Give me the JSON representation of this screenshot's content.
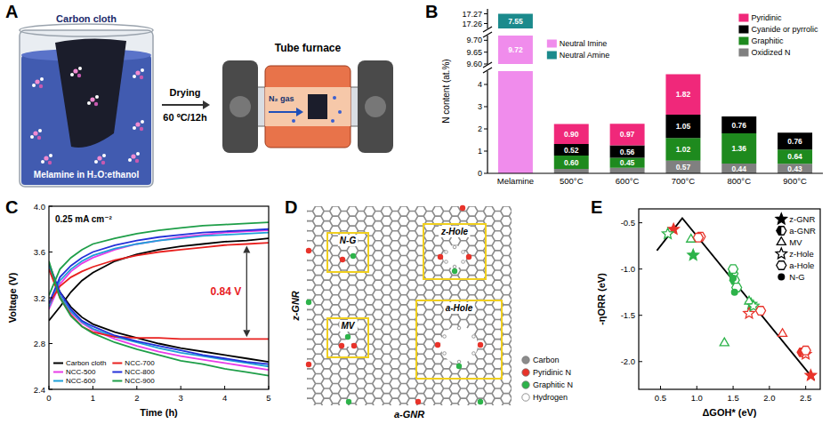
{
  "schematics": [
    {
      "panel": "A",
      "texts": {
        "carbon_cloth": "Carbon cloth",
        "solution": "Melamine in H₂O:ethanol",
        "step": "Drying",
        "step_condition": "60 ºC/12h",
        "furnace": "Tube furnace",
        "gas": "N₂ gas"
      }
    },
    {
      "panel": "D",
      "edges": {
        "zigzag": "z-GNR",
        "armchair": "a-GNR"
      },
      "sites": [
        "N-G",
        "z-Hole",
        "MV",
        "a-Hole"
      ],
      "legend": [
        {
          "name": "Carbon",
          "color": "#8c8c8c"
        },
        {
          "name": "Pyridinic N",
          "color": "#e8332a"
        },
        {
          "name": "Graphitic N",
          "color": "#2db34a"
        },
        {
          "name": "Hydrogen",
          "color": "#ffffff"
        }
      ]
    }
  ],
  "chart_data": [
    {
      "panel": "B",
      "type": "bar",
      "stacked": true,
      "data_labels": true,
      "legend": "upper right",
      "y_label": "N content (at.%)",
      "categories": [
        "Melamine",
        "500°C",
        "600°C",
        "700°C",
        "800°C",
        "900°C"
      ],
      "y_segments": [
        {
          "ylim": [
            0,
            4.6
          ],
          "yticks": [
            0,
            1,
            2,
            3,
            4
          ]
        },
        {
          "ylim": [
            9.6,
            9.72
          ],
          "yticks": [
            {
              "value": 9.6,
              "label": "9.60"
            },
            {
              "value": 9.65,
              "label": "9.65"
            },
            {
              "value": 9.7,
              "label": "9.70"
            }
          ]
        },
        {
          "ylim": [
            17.255,
            17.275
          ],
          "yticks": [
            17.26,
            17.27
          ]
        }
      ],
      "series": [
        {
          "name": "Neutral Amine",
          "color": "#1b8a8c",
          "values": [
            7.55,
            null,
            null,
            null,
            null,
            null
          ],
          "value_labels": [
            "7.55",
            null,
            null,
            null,
            null,
            null
          ]
        },
        {
          "name": "Neutral Imine",
          "color": "#f08cec",
          "values": [
            9.72,
            null,
            null,
            null,
            null,
            null
          ],
          "value_labels": [
            "9.72",
            null,
            null,
            null,
            null,
            null
          ]
        },
        {
          "name": "Pyridinic",
          "color": "#f0287a",
          "values": [
            null,
            0.9,
            0.97,
            1.82,
            null,
            null
          ],
          "value_labels": [
            null,
            "0.90",
            "0.97",
            "1.82",
            null,
            null
          ]
        },
        {
          "name": "Cyanide or pyrrolic",
          "color": "#000000",
          "values": [
            null,
            0.52,
            0.56,
            1.05,
            0.76,
            0.76
          ],
          "value_labels": [
            null,
            "0.52",
            "0.56",
            "1.05",
            "0.76",
            "0.76"
          ]
        },
        {
          "name": "Graphitic",
          "color": "#1e8a1e",
          "values": [
            null,
            0.6,
            0.45,
            1.02,
            1.36,
            0.64
          ],
          "value_labels": [
            null,
            "0.60",
            "0.45",
            "1.02",
            "1.36",
            "0.64"
          ]
        },
        {
          "name": "Oxidized N",
          "color": "#808080",
          "values": [
            null,
            0.2,
            0.25,
            0.57,
            0.44,
            0.43
          ],
          "value_labels": [
            null,
            null,
            null,
            "0.57",
            "0.44",
            "0.43"
          ]
        }
      ]
    },
    {
      "panel": "C",
      "type": "line",
      "legend": "lower left",
      "x_label": "Time (h)",
      "y_label": "Voltage (V)",
      "xlim": [
        0,
        5
      ],
      "xticks": [
        0,
        1,
        2,
        3,
        4,
        5
      ],
      "ylim": [
        2.4,
        4
      ],
      "yticks": [
        2.4,
        2.8,
        3.2,
        3.6,
        {
          "value": 4,
          "label": "4.0"
        }
      ],
      "annotations": [
        "0.25 mA cm⁻²",
        "0.84 V"
      ],
      "x": [
        0,
        0.25,
        0.5,
        0.75,
        1,
        1.5,
        2,
        2.5,
        3,
        3.5,
        4,
        4.5,
        5
      ],
      "series": [
        {
          "name": "Carbon cloth",
          "color": "#000000",
          "charge": [
            3.0,
            3.12,
            3.25,
            3.35,
            3.42,
            3.52,
            3.58,
            3.62,
            3.65,
            3.67,
            3.69,
            3.7,
            3.72
          ],
          "discharge": [
            3.45,
            3.25,
            3.12,
            3.03,
            2.97,
            2.9,
            2.85,
            2.8,
            2.76,
            2.73,
            2.7,
            2.67,
            2.64
          ]
        },
        {
          "name": "NCC-500",
          "color": "#e83ce8",
          "charge": [
            3.1,
            3.32,
            3.43,
            3.5,
            3.55,
            3.62,
            3.67,
            3.7,
            3.73,
            3.75,
            3.77,
            3.78,
            3.79
          ],
          "discharge": [
            3.5,
            3.22,
            3.07,
            2.98,
            2.92,
            2.84,
            2.78,
            2.73,
            2.69,
            2.66,
            2.63,
            2.6,
            2.57
          ]
        },
        {
          "name": "NCC-600",
          "color": "#1fa0d8",
          "charge": [
            3.12,
            3.35,
            3.45,
            3.52,
            3.57,
            3.63,
            3.67,
            3.7,
            3.72,
            3.74,
            3.75,
            3.76,
            3.77
          ],
          "discharge": [
            3.48,
            3.22,
            3.08,
            2.99,
            2.93,
            2.86,
            2.81,
            2.76,
            2.72,
            2.69,
            2.66,
            2.63,
            2.6
          ]
        },
        {
          "name": "NCC-700",
          "color": "#e8201e",
          "charge": [
            3.15,
            3.3,
            3.38,
            3.43,
            3.47,
            3.53,
            3.57,
            3.6,
            3.62,
            3.64,
            3.66,
            3.67,
            3.68
          ],
          "discharge": [
            3.45,
            3.2,
            3.05,
            2.95,
            2.9,
            2.86,
            2.85,
            2.85,
            2.84,
            2.84,
            2.84,
            2.84,
            2.84
          ]
        },
        {
          "name": "NCC-800",
          "color": "#2430d8",
          "charge": [
            3.15,
            3.38,
            3.48,
            3.55,
            3.6,
            3.66,
            3.7,
            3.73,
            3.75,
            3.77,
            3.78,
            3.79,
            3.8
          ],
          "discharge": [
            3.5,
            3.25,
            3.1,
            3.0,
            2.95,
            2.87,
            2.82,
            2.78,
            2.74,
            2.7,
            2.67,
            2.64,
            2.62
          ]
        },
        {
          "name": "NCC-900",
          "color": "#1e9e48",
          "charge": [
            3.22,
            3.45,
            3.55,
            3.62,
            3.67,
            3.72,
            3.76,
            3.79,
            3.81,
            3.83,
            3.84,
            3.85,
            3.86
          ],
          "discharge": [
            3.52,
            3.2,
            3.04,
            2.95,
            2.89,
            2.81,
            2.75,
            2.7,
            2.65,
            2.62,
            2.58,
            2.55,
            2.52
          ]
        }
      ]
    },
    {
      "panel": "E",
      "type": "scatter",
      "legend": "upper right",
      "x_label": "ΔGOH* (eV)",
      "y_label": "-ηORR (eV)",
      "xlim": [
        0.2,
        2.7
      ],
      "xticks": [
        0.5,
        {
          "value": 1,
          "label": "1.0"
        },
        1.5,
        {
          "value": 2,
          "label": "2.0"
        },
        2.5
      ],
      "ylim": [
        -2.3,
        -0.35
      ],
      "yticks": [
        -0.5,
        {
          "value": -1,
          "label": "-1.0"
        },
        -1.5,
        {
          "value": -2,
          "label": "-2.0"
        }
      ],
      "series": [
        {
          "type": "line",
          "color": "#000000",
          "x": [
            0.45,
            0.8,
            2.62
          ],
          "values": [
            -0.8,
            -0.45,
            -2.2
          ]
        },
        {
          "name": "z-GNR",
          "marker": "star",
          "x": [
            0.68,
            0.95,
            1.75,
            2.57
          ],
          "values": [
            -0.57,
            -0.85,
            -1.38,
            -2.15
          ],
          "colors": [
            "#e8332a",
            "#2db34a",
            "#2db34a",
            "#e8332a"
          ]
        },
        {
          "name": "a-GNR",
          "marker": "hexagon-half",
          "x": [
            1.05,
            1.5,
            1.52,
            2.45
          ],
          "values": [
            -0.65,
            -1.05,
            -1.12,
            -1.9
          ],
          "colors": [
            "#e8332a",
            "#2db34a",
            "#2db34a",
            "#e8332a"
          ]
        },
        {
          "name": "MV",
          "marker": "triangle",
          "x": [
            0.92,
            1.38,
            1.72,
            2.18
          ],
          "values": [
            -0.68,
            -1.8,
            -1.35,
            -1.7
          ],
          "colors": [
            "#2db34a",
            "#2db34a",
            "#2db34a",
            "#e8332a"
          ]
        },
        {
          "name": "z-Hole",
          "marker": "star-open",
          "x": [
            0.6,
            1.72,
            1.78,
            2.5
          ],
          "values": [
            -0.62,
            -1.48,
            -1.4,
            -1.92
          ],
          "colors": [
            "#2db34a",
            "#e8332a",
            "#2db34a",
            "#e8332a"
          ]
        },
        {
          "name": "a-Hole",
          "marker": "hexagon",
          "x": [
            1.02,
            1.5,
            1.55,
            1.88,
            2.5
          ],
          "values": [
            -0.66,
            -1.0,
            -1.2,
            -1.45,
            -1.88
          ],
          "colors": [
            "#e8332a",
            "#2db34a",
            "#2db34a",
            "#e8332a",
            "#e8332a"
          ]
        },
        {
          "name": "N-G",
          "marker": "circle",
          "x": [
            1.5,
            1.52
          ],
          "values": [
            -1.1,
            -1.25
          ],
          "colors": [
            "#2db34a",
            "#2db34a"
          ]
        }
      ]
    }
  ]
}
